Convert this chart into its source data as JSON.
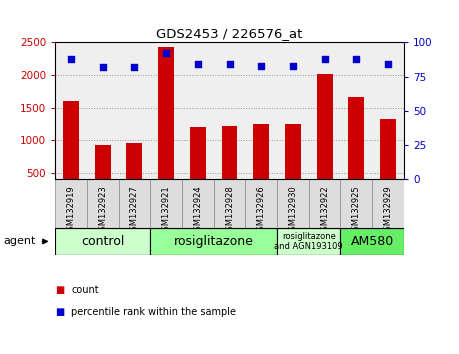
{
  "title": "GDS2453 / 226576_at",
  "samples": [
    "GSM132919",
    "GSM132923",
    "GSM132927",
    "GSM132921",
    "GSM132924",
    "GSM132928",
    "GSM132926",
    "GSM132930",
    "GSM132922",
    "GSM132925",
    "GSM132929"
  ],
  "counts": [
    1600,
    930,
    950,
    2430,
    1200,
    1210,
    1250,
    1250,
    2010,
    1670,
    1320
  ],
  "percentiles": [
    88,
    82,
    82,
    92,
    84,
    84,
    83,
    83,
    88,
    88,
    84
  ],
  "ylim_left": [
    400,
    2500
  ],
  "ylim_right": [
    0,
    100
  ],
  "yticks_left": [
    500,
    1000,
    1500,
    2000,
    2500
  ],
  "yticks_right": [
    0,
    25,
    50,
    75,
    100
  ],
  "bar_color": "#cc0000",
  "dot_color": "#0000cc",
  "bar_bottom": 400,
  "groups": [
    {
      "label": "control",
      "start": 0,
      "end": 3,
      "color": "#ccffcc",
      "fontsize": 9
    },
    {
      "label": "rosiglitazone",
      "start": 3,
      "end": 7,
      "color": "#99ff99",
      "fontsize": 9
    },
    {
      "label": "rosiglitazone\nand AGN193109",
      "start": 7,
      "end": 9,
      "color": "#ccffcc",
      "fontsize": 6
    },
    {
      "label": "AM580",
      "start": 9,
      "end": 11,
      "color": "#66ee66",
      "fontsize": 9
    }
  ],
  "legend_count_color": "#cc0000",
  "legend_dot_color": "#0000cc",
  "background_color": "#ffffff",
  "grid_color": "#000000",
  "tick_label_color_left": "#cc0000",
  "tick_label_color_right": "#0000cc",
  "sample_cell_color": "#dddddd"
}
